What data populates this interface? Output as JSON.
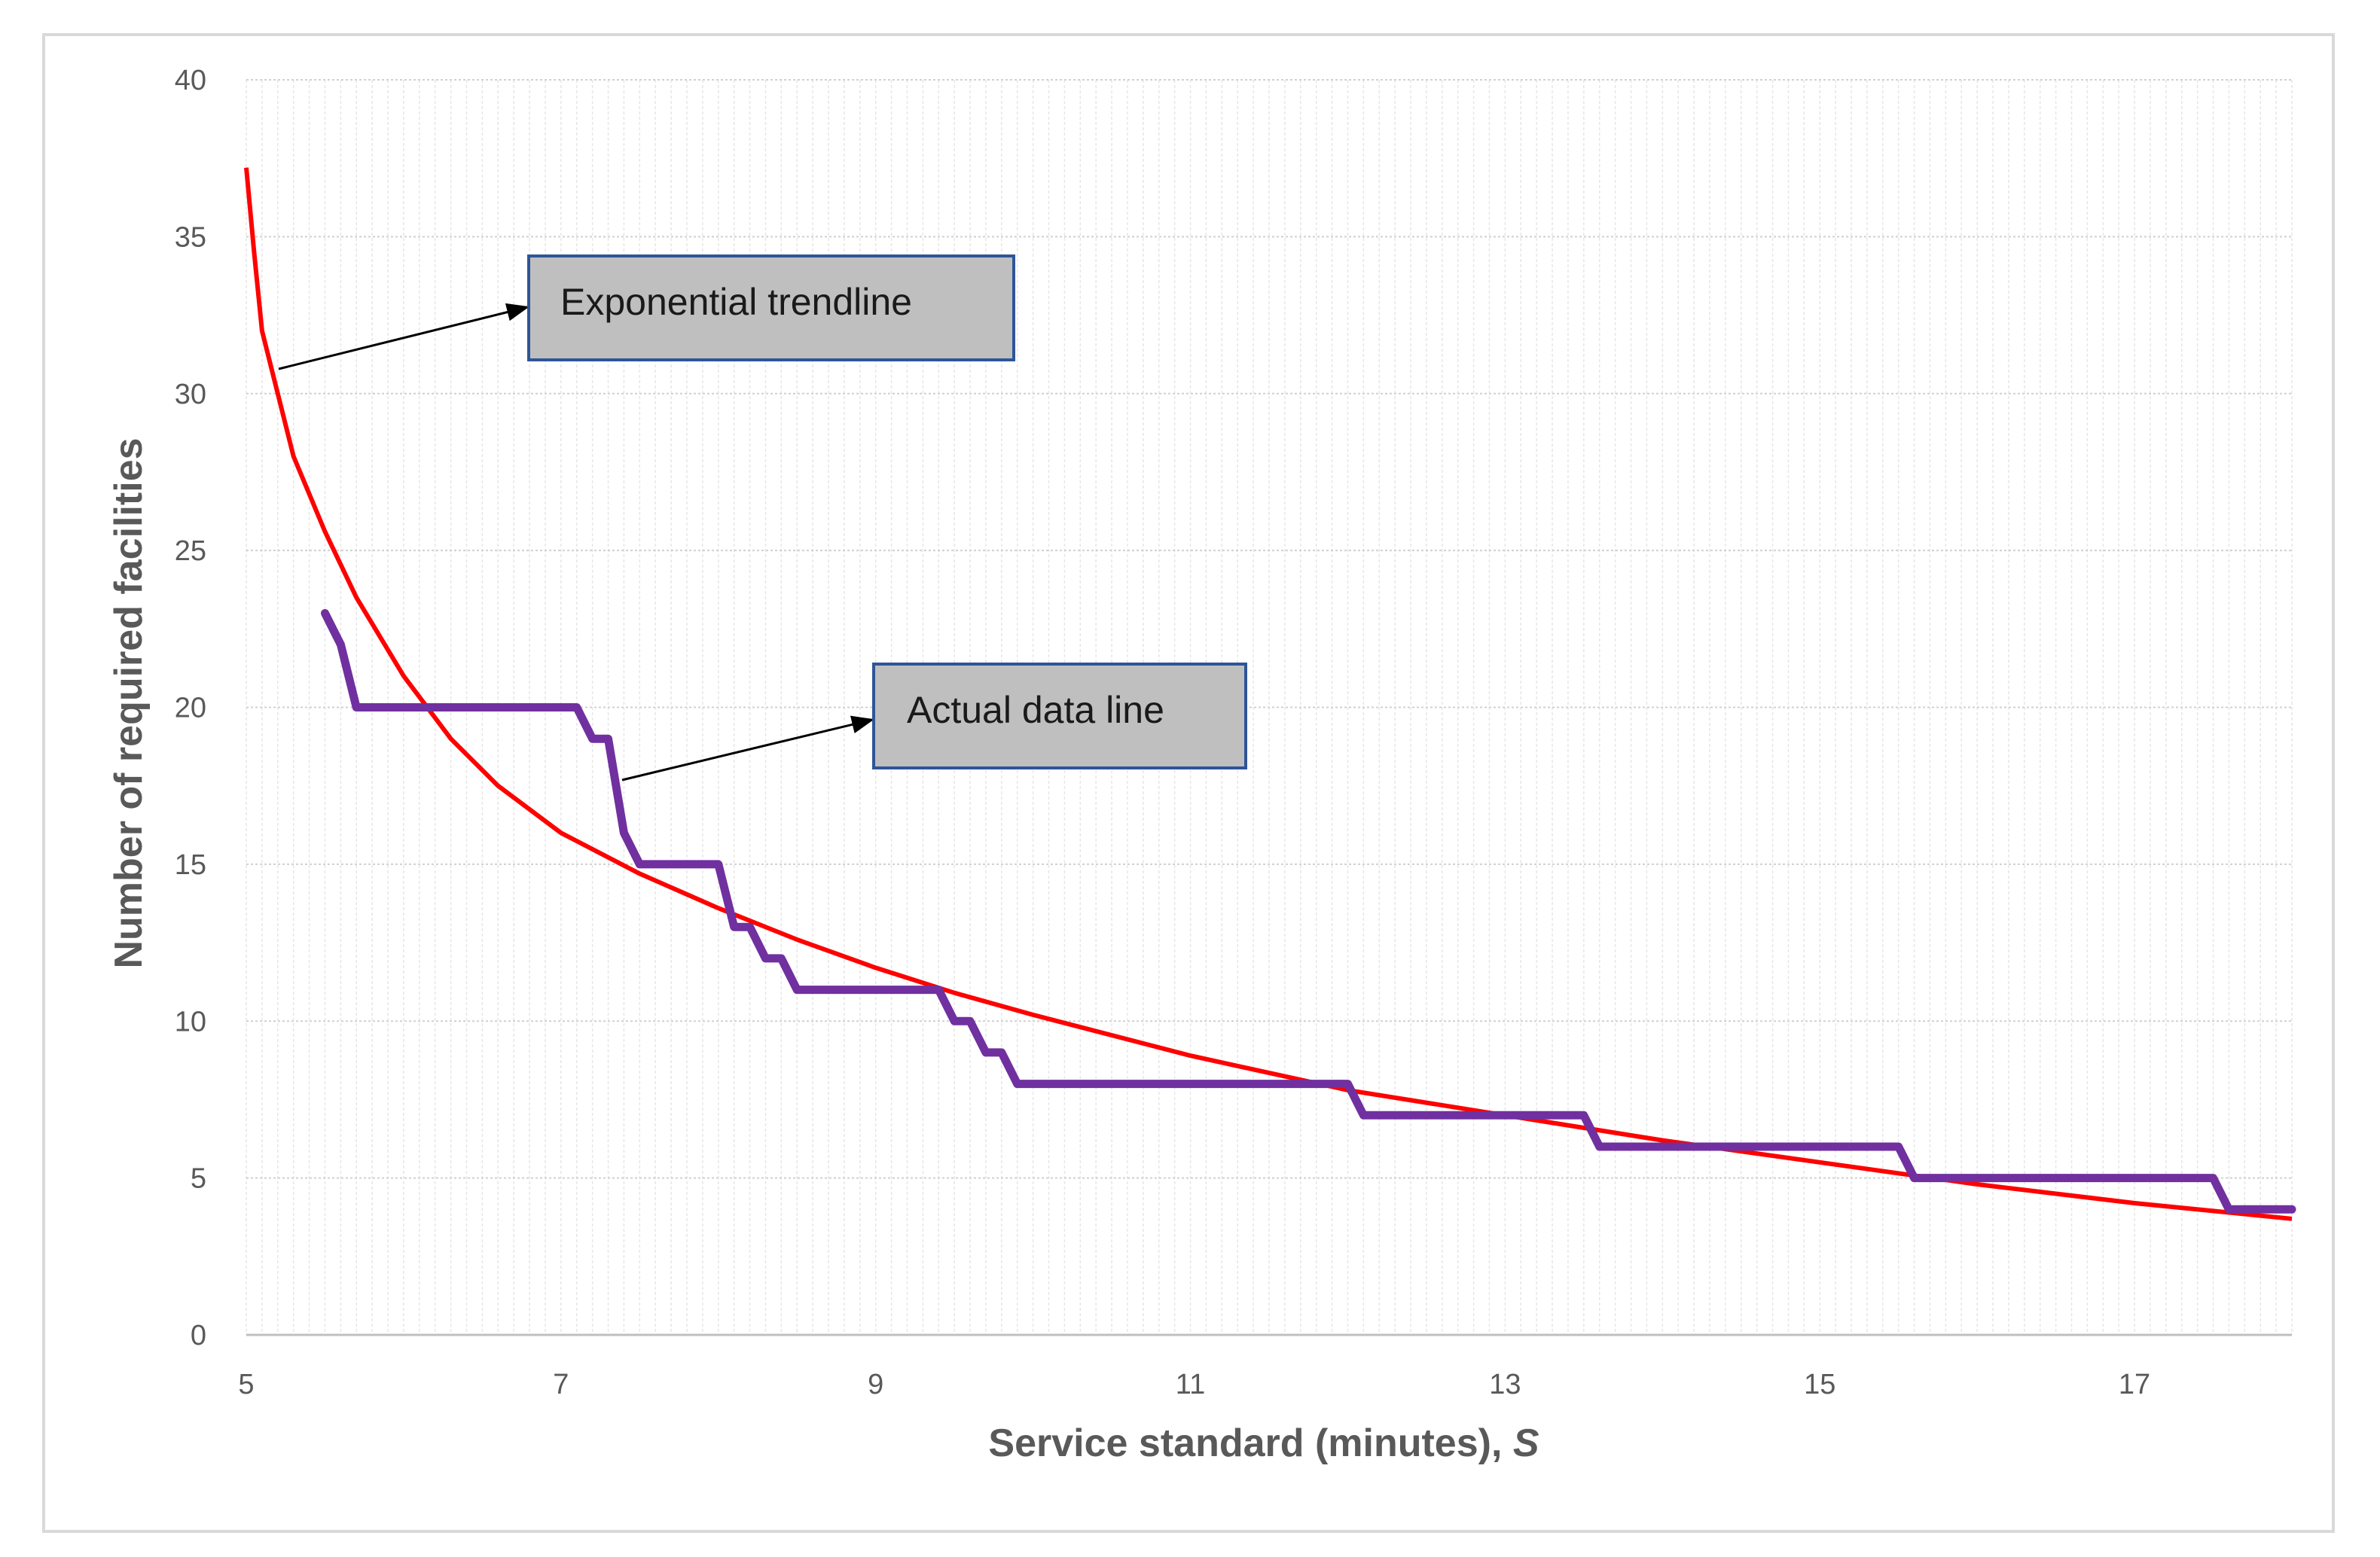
{
  "chart_data": {
    "type": "line",
    "xlabel": "Service standard (minutes), ",
    "xlabel_var": "S",
    "ylabel": "Number of required facilities",
    "xlim": [
      5,
      18
    ],
    "ylim": [
      0,
      40
    ],
    "x_ticks": [
      5,
      7,
      9,
      11,
      13,
      15,
      17
    ],
    "y_ticks": [
      0,
      5,
      10,
      15,
      20,
      25,
      30,
      35,
      40
    ],
    "minor_x_step": 0.1,
    "grid": true,
    "colors": {
      "actual": "#7030a0",
      "trend": "#ff0000",
      "callout_fill": "#bfbfbf",
      "callout_border": "#2f5597"
    },
    "series": [
      {
        "name": "Actual data line",
        "color": "#7030a0",
        "points": [
          [
            5.5,
            23
          ],
          [
            5.6,
            22
          ],
          [
            5.7,
            20
          ],
          [
            7.1,
            20
          ],
          [
            7.2,
            19
          ],
          [
            7.3,
            19
          ],
          [
            7.4,
            16
          ],
          [
            7.5,
            15
          ],
          [
            8.0,
            15
          ],
          [
            8.1,
            13
          ],
          [
            8.2,
            13
          ],
          [
            8.3,
            12
          ],
          [
            8.4,
            12
          ],
          [
            8.5,
            11
          ],
          [
            9.4,
            11
          ],
          [
            9.5,
            10
          ],
          [
            9.6,
            10
          ],
          [
            9.7,
            9
          ],
          [
            9.8,
            9
          ],
          [
            9.9,
            8
          ],
          [
            12.0,
            8
          ],
          [
            12.1,
            7
          ],
          [
            13.5,
            7
          ],
          [
            13.6,
            6
          ],
          [
            15.5,
            6
          ],
          [
            15.6,
            5
          ],
          [
            17.5,
            5
          ],
          [
            17.6,
            4
          ],
          [
            18.0,
            4
          ]
        ]
      },
      {
        "name": "Exponential trendline",
        "color": "#ff0000",
        "points": [
          [
            5.0,
            37.2
          ],
          [
            5.05,
            34.5
          ],
          [
            5.1,
            32.0
          ],
          [
            5.2,
            30.0
          ],
          [
            5.3,
            28.0
          ],
          [
            5.5,
            25.6
          ],
          [
            5.7,
            23.5
          ],
          [
            6.0,
            21.0
          ],
          [
            6.3,
            19.0
          ],
          [
            6.6,
            17.5
          ],
          [
            7.0,
            16.0
          ],
          [
            7.5,
            14.7
          ],
          [
            8.0,
            13.6
          ],
          [
            8.5,
            12.6
          ],
          [
            9.0,
            11.7
          ],
          [
            9.5,
            10.9
          ],
          [
            10.0,
            10.2
          ],
          [
            11.0,
            8.9
          ],
          [
            12.0,
            7.8
          ],
          [
            13.0,
            7.0
          ],
          [
            14.0,
            6.2
          ],
          [
            15.0,
            5.5
          ],
          [
            16.0,
            4.8
          ],
          [
            17.0,
            4.2
          ],
          [
            18.0,
            3.7
          ]
        ]
      }
    ],
    "annotations": [
      {
        "text": "Exponential trendline"
      },
      {
        "text": "Actual data line"
      }
    ]
  }
}
